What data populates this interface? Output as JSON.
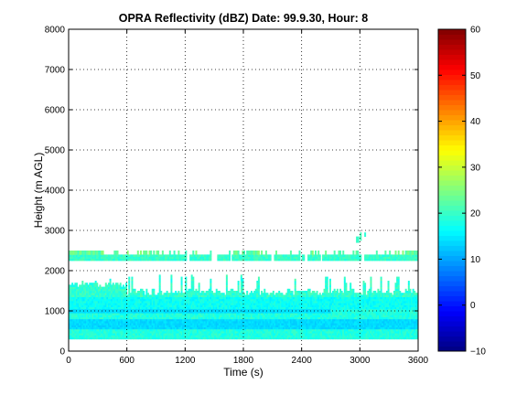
{
  "chart_data": {
    "type": "heatmap",
    "title": "OPRA Reflectivity (dBZ)  Date: 99.9.30, Hour: 8",
    "xlabel": "Time (s)",
    "ylabel": "Height (m AGL)",
    "xlim": [
      0,
      3600
    ],
    "ylim": [
      0,
      8000
    ],
    "xticks": [
      0,
      600,
      1200,
      1800,
      2400,
      3000,
      3600
    ],
    "yticks": [
      0,
      1000,
      2000,
      3000,
      4000,
      5000,
      6000,
      7000,
      8000
    ],
    "grid": "dotted",
    "colorbar": {
      "colormap": "jet",
      "range": [
        -10,
        60
      ],
      "ticks": [
        -10,
        0,
        10,
        20,
        30,
        40,
        50,
        60
      ],
      "tick_labels": [
        "−10",
        "0",
        "10",
        "20",
        "30",
        "40",
        "50",
        "60"
      ]
    },
    "layers": [
      {
        "name": "upper band",
        "y_range_m": [
          2250,
          2550
        ],
        "x_range_s": [
          0,
          3600
        ],
        "dbz_range": [
          16,
          26
        ],
        "note": "broken in places, thin top fringe 2400-2550 m"
      },
      {
        "name": "lower column",
        "y_range_m": [
          300,
          1900
        ],
        "x_range_s": [
          0,
          3600
        ],
        "dbz_range": [
          12,
          22
        ],
        "note": "continuous echo, sparse tops reaching about 1900 m"
      },
      {
        "name": "weak layer",
        "y_range_m": [
          550,
          800
        ],
        "x_range_s": [
          0,
          3600
        ],
        "dbz_range": [
          11,
          15
        ]
      },
      {
        "name": "weak layer",
        "y_range_m": [
          950,
          1050
        ],
        "x_range_s": [
          0,
          2700
        ],
        "dbz_range": [
          12,
          15
        ]
      },
      {
        "name": "isolated echo",
        "y_range_m": [
          2700,
          2950
        ],
        "x_range_s": [
          2950,
          3050
        ],
        "dbz_range": [
          18,
          22
        ]
      }
    ]
  }
}
